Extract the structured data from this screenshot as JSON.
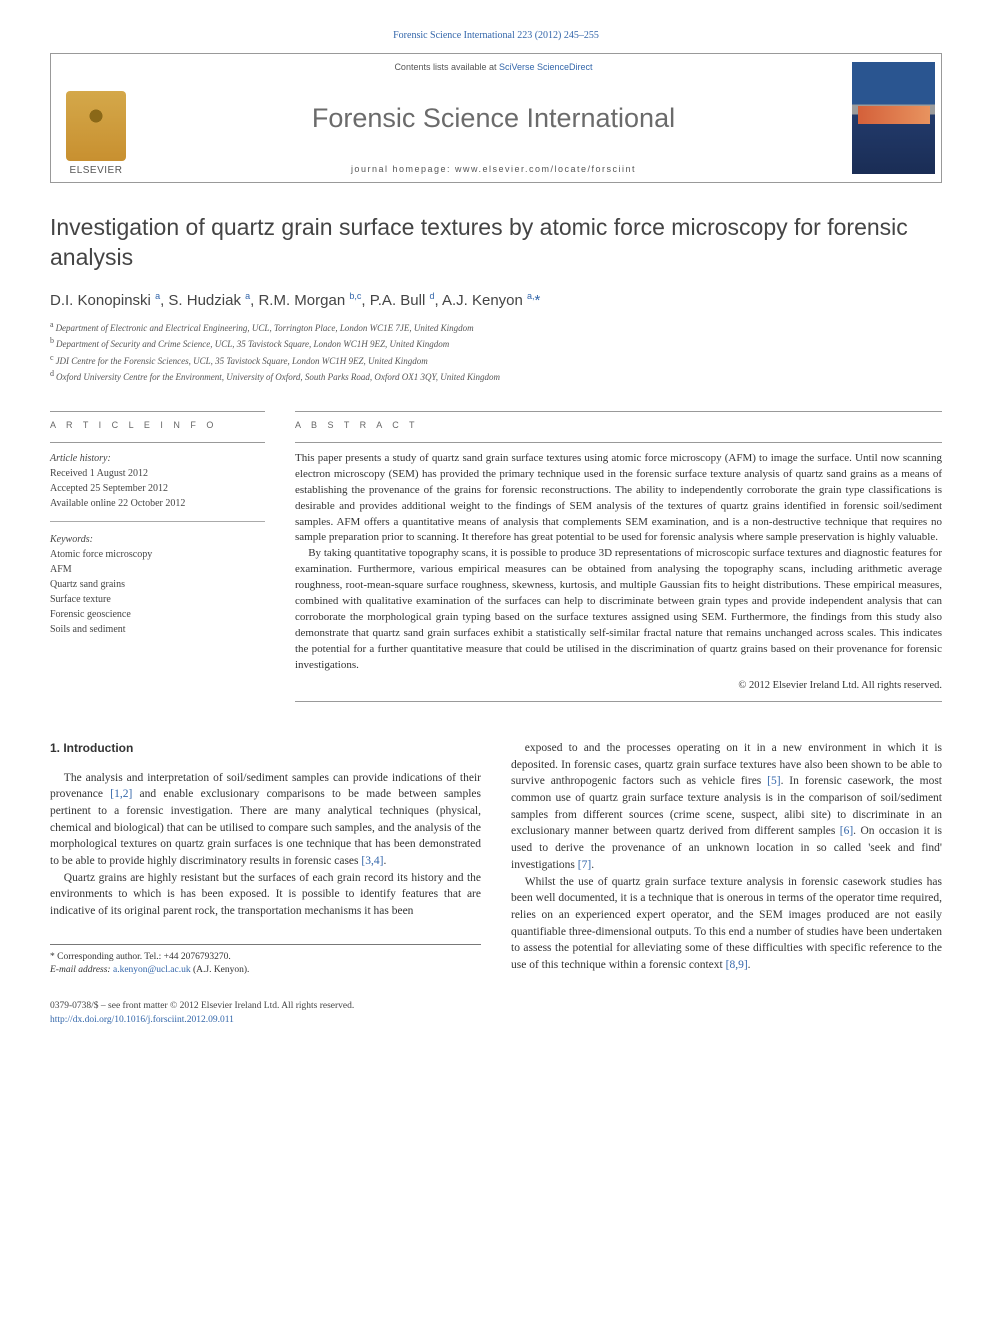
{
  "running_header": "Forensic Science International 223 (2012) 245–255",
  "banner": {
    "contents_prefix": "Contents lists available at ",
    "contents_link": "SciVerse ScienceDirect",
    "journal_name": "Forensic Science International",
    "homepage_prefix": "journal homepage: ",
    "homepage_url": "www.elsevier.com/locate/forsciint",
    "publisher": "ELSEVIER"
  },
  "title": "Investigation of quartz grain surface textures by atomic force microscopy for forensic analysis",
  "authors_html": "D.I. Konopinski <sup>a</sup>, S. Hudziak <sup>a</sup>, R.M. Morgan <sup>b,c</sup>, P.A. Bull <sup>d</sup>, A.J. Kenyon <sup>a,</sup><span class='star'>*</span>",
  "affiliations": [
    {
      "tag": "a",
      "text": "Department of Electronic and Electrical Engineering, UCL, Torrington Place, London WC1E 7JE, United Kingdom"
    },
    {
      "tag": "b",
      "text": "Department of Security and Crime Science, UCL, 35 Tavistock Square, London WC1H 9EZ, United Kingdom"
    },
    {
      "tag": "c",
      "text": "JDI Centre for the Forensic Sciences, UCL, 35 Tavistock Square, London WC1H 9EZ, United Kingdom"
    },
    {
      "tag": "d",
      "text": "Oxford University Centre for the Environment, University of Oxford, South Parks Road, Oxford OX1 3QY, United Kingdom"
    }
  ],
  "info": {
    "section_label": "A R T I C L E   I N F O",
    "history_head": "Article history:",
    "received": "Received 1 August 2012",
    "accepted": "Accepted 25 September 2012",
    "online": "Available online 22 October 2012",
    "keywords_head": "Keywords:",
    "keywords": [
      "Atomic force microscopy",
      "AFM",
      "Quartz sand grains",
      "Surface texture",
      "Forensic geoscience",
      "Soils and sediment"
    ]
  },
  "abstract": {
    "section_label": "A B S T R A C T",
    "para1": "This paper presents a study of quartz sand grain surface textures using atomic force microscopy (AFM) to image the surface. Until now scanning electron microscopy (SEM) has provided the primary technique used in the forensic surface texture analysis of quartz sand grains as a means of establishing the provenance of the grains for forensic reconstructions. The ability to independently corroborate the grain type classifications is desirable and provides additional weight to the findings of SEM analysis of the textures of quartz grains identified in forensic soil/sediment samples. AFM offers a quantitative means of analysis that complements SEM examination, and is a non-destructive technique that requires no sample preparation prior to scanning. It therefore has great potential to be used for forensic analysis where sample preservation is highly valuable.",
    "para2": "By taking quantitative topography scans, it is possible to produce 3D representations of microscopic surface textures and diagnostic features for examination. Furthermore, various empirical measures can be obtained from analysing the topography scans, including arithmetic average roughness, root-mean-square surface roughness, skewness, kurtosis, and multiple Gaussian fits to height distributions. These empirical measures, combined with qualitative examination of the surfaces can help to discriminate between grain types and provide independent analysis that can corroborate the morphological grain typing based on the surface textures assigned using SEM. Furthermore, the findings from this study also demonstrate that quartz sand grain surfaces exhibit a statistically self-similar fractal nature that remains unchanged across scales. This indicates the potential for a further quantitative measure that could be utilised in the discrimination of quartz grains based on their provenance for forensic investigations.",
    "copyright": "© 2012 Elsevier Ireland Ltd. All rights reserved."
  },
  "body": {
    "heading": "1. Introduction",
    "p1": "The analysis and interpretation of soil/sediment samples can provide indications of their provenance [1,2] and enable exclusionary comparisons to be made between samples pertinent to a forensic investigation. There are many analytical techniques (physical, chemical and biological) that can be utilised to compare such samples, and the analysis of the morphological textures on quartz grain surfaces is one technique that has been demonstrated to be able to provide highly discriminatory results in forensic cases [3,4].",
    "p2": "Quartz grains are highly resistant but the surfaces of each grain record its history and the environments to which is has been exposed. It is possible to identify features that are indicative of its original parent rock, the transportation mechanisms it has been",
    "p3": "exposed to and the processes operating on it in a new environment in which it is deposited. In forensic cases, quartz grain surface textures have also been shown to be able to survive anthropogenic factors such as vehicle fires [5]. In forensic casework, the most common use of quartz grain surface texture analysis is in the comparison of soil/sediment samples from different sources (crime scene, suspect, alibi site) to discriminate in an exclusionary manner between quartz derived from different samples [6]. On occasion it is used to derive the provenance of an unknown location in so called 'seek and find' investigations [7].",
    "p4": "Whilst the use of quartz grain surface texture analysis in forensic casework studies has been well documented, it is a technique that is onerous in terms of the operator time required, relies on an experienced expert operator, and the SEM images produced are not easily quantifiable three-dimensional outputs. To this end a number of studies have been undertaken to assess the potential for alleviating some of these difficulties with specific reference to the use of this technique within a forensic context [8,9]."
  },
  "footnote": {
    "corr_label": "* Corresponding author. Tel.: +44 2076793270.",
    "email_label": "E-mail address:",
    "email": "a.kenyon@ucl.ac.uk",
    "email_who": "(A.J. Kenyon)."
  },
  "footer": {
    "line1": "0379-0738/$ – see front matter © 2012 Elsevier Ireland Ltd. All rights reserved.",
    "doi": "http://dx.doi.org/10.1016/j.forsciint.2012.09.011"
  },
  "colors": {
    "link": "#3366aa",
    "text": "#333333",
    "banner_border": "#999999"
  }
}
